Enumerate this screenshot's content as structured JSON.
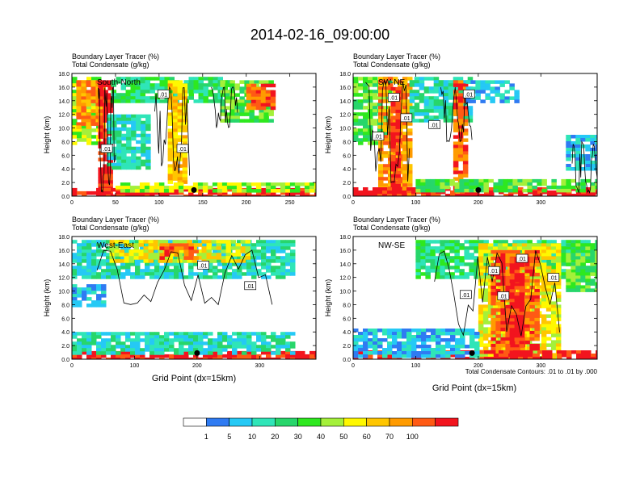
{
  "figure": {
    "title": "2014-02-16_09:00:00",
    "contour_note": "Total Condensate Contours: .01 to .01 by .000",
    "xlabel": "Grid Point (dx=15km)",
    "ylabel": "Height (km)"
  },
  "colors": {
    "levels": [
      "#ffffff",
      "#2f7bf2",
      "#25c9f5",
      "#2fe5b8",
      "#27d66b",
      "#2ee81f",
      "#a4f03a",
      "#fff800",
      "#ffc600",
      "#ff9b00",
      "#ff5a14",
      "#f2141e"
    ],
    "contour": "#000000",
    "marker": "#000000"
  },
  "chart_data": [
    {
      "type": "heatmap",
      "panel": "South-North",
      "label_top": "Boundary Layer Tracer   (%)",
      "label_bottom": "Total Condensate   (g/kg)",
      "xlim": [
        0,
        280
      ],
      "ylim": [
        0,
        18
      ],
      "xticks": [
        0,
        50,
        100,
        150,
        200,
        250
      ],
      "yticks": [
        "0.0",
        "2.0",
        "4.0",
        "6.0",
        "8.0",
        "10.0",
        "12.0",
        "14.0",
        "16.0",
        "18.0"
      ],
      "marker_x": 140,
      "boxes": [
        {
          "label": ".01",
          "x": 105,
          "y": 15.0
        },
        {
          "label": ".01",
          "x": 40,
          "y": 7.0
        },
        {
          "label": ".01",
          "x": 127,
          "y": 7.0
        }
      ],
      "seed": 11,
      "regions": [
        {
          "x": [
            0,
            30
          ],
          "y": [
            8,
            17.5
          ],
          "lvl": 6
        },
        {
          "x": [
            5,
            35
          ],
          "y": [
            10,
            17
          ],
          "lvl": 9
        },
        {
          "x": [
            30,
            42
          ],
          "y": [
            0.3,
            17
          ],
          "lvl": 11
        },
        {
          "x": [
            40,
            90
          ],
          "y": [
            4,
            12
          ],
          "lvl": 3
        },
        {
          "x": [
            45,
            180
          ],
          "y": [
            14,
            17.5
          ],
          "lvl": 4
        },
        {
          "x": [
            110,
            130
          ],
          "y": [
            2,
            17
          ],
          "lvl": 8
        },
        {
          "x": [
            170,
            230
          ],
          "y": [
            11,
            17
          ],
          "lvl": 5
        },
        {
          "x": [
            200,
            230
          ],
          "y": [
            13,
            16.5
          ],
          "lvl": 10
        },
        {
          "x": [
            0,
            280
          ],
          "y": [
            0,
            1.2
          ],
          "lvl": 11
        },
        {
          "x": [
            50,
            280
          ],
          "y": [
            0.8,
            2.0
          ],
          "lvl": 6
        }
      ],
      "contours": [
        {
          "x": [
            30,
            50
          ],
          "y": [
            0.5,
            16
          ]
        },
        {
          "x": [
            95,
            135
          ],
          "y": [
            3,
            16
          ]
        },
        {
          "x": [
            160,
            190
          ],
          "y": [
            10,
            16
          ]
        }
      ]
    },
    {
      "type": "heatmap",
      "panel": "SW-NE",
      "label_top": "Boundary Layer Tracer   (%)",
      "label_bottom": "Total Condensate   (g/kg)",
      "xlim": [
        0,
        390
      ],
      "ylim": [
        0,
        18
      ],
      "xticks": [
        0,
        100,
        200,
        300
      ],
      "yticks": [
        "0.0",
        "2.0",
        "4.0",
        "6.0",
        "8.0",
        "10.0",
        "12.0",
        "14.0",
        "16.0",
        "18.0"
      ],
      "marker_x": 200,
      "boxes": [
        {
          "label": ".01",
          "x": 65,
          "y": 14.5
        },
        {
          "label": ".01",
          "x": 85,
          "y": 11.5
        },
        {
          "label": ".01",
          "x": 40,
          "y": 8.8
        },
        {
          "label": ".01",
          "x": 130,
          "y": 10.5
        },
        {
          "label": ".01",
          "x": 185,
          "y": 15.0
        }
      ],
      "seed": 23,
      "regions": [
        {
          "x": [
            0,
            60
          ],
          "y": [
            8,
            17.5
          ],
          "lvl": 5
        },
        {
          "x": [
            40,
            90
          ],
          "y": [
            0.3,
            17.5
          ],
          "lvl": 9
        },
        {
          "x": [
            60,
            75
          ],
          "y": [
            0.3,
            16
          ],
          "lvl": 11
        },
        {
          "x": [
            90,
            190
          ],
          "y": [
            11,
            17.5
          ],
          "lvl": 3
        },
        {
          "x": [
            160,
            180
          ],
          "y": [
            0.5,
            17
          ],
          "lvl": 10
        },
        {
          "x": [
            180,
            260
          ],
          "y": [
            14,
            17
          ],
          "lvl": 2
        },
        {
          "x": [
            0,
            390
          ],
          "y": [
            0,
            1.3
          ],
          "lvl": 11
        },
        {
          "x": [
            100,
            390
          ],
          "y": [
            0.8,
            2.5
          ],
          "lvl": 5
        },
        {
          "x": [
            340,
            390
          ],
          "y": [
            4,
            9
          ],
          "lvl": 2
        }
      ],
      "contours": [
        {
          "x": [
            20,
            90
          ],
          "y": [
            2,
            17
          ]
        },
        {
          "x": [
            140,
            190
          ],
          "y": [
            8,
            16
          ]
        },
        {
          "x": [
            350,
            390
          ],
          "y": [
            0.5,
            8
          ]
        }
      ]
    },
    {
      "type": "heatmap",
      "panel": "West-East",
      "label_top": "Boundary Layer Tracer   (%)",
      "label_bottom": "Total Condensate   (g/kg)",
      "xlim": [
        0,
        390
      ],
      "ylim": [
        0,
        18
      ],
      "xticks": [
        0,
        100,
        200,
        300
      ],
      "yticks": [
        "0.0",
        "2.0",
        "4.0",
        "6.0",
        "8.0",
        "10.0",
        "12.0",
        "14.0",
        "16.0",
        "18.0"
      ],
      "marker_x": 200,
      "boxes": [
        {
          "label": ".01",
          "x": 210,
          "y": 13.8
        },
        {
          "label": ".01",
          "x": 285,
          "y": 10.8
        }
      ],
      "seed": 37,
      "regions": [
        {
          "x": [
            0,
            350
          ],
          "y": [
            12,
            17.5
          ],
          "lvl": 3
        },
        {
          "x": [
            60,
            280
          ],
          "y": [
            14.5,
            17.5
          ],
          "lvl": 7
        },
        {
          "x": [
            140,
            200
          ],
          "y": [
            15,
            17
          ],
          "lvl": 10
        },
        {
          "x": [
            0,
            50
          ],
          "y": [
            8,
            11
          ],
          "lvl": 2
        },
        {
          "x": [
            0,
            390
          ],
          "y": [
            0,
            1.2
          ],
          "lvl": 11
        },
        {
          "x": [
            0,
            350
          ],
          "y": [
            0.8,
            4
          ],
          "lvl": 3
        }
      ],
      "contours": [
        {
          "x": [
            40,
            320
          ],
          "y": [
            8,
            16
          ]
        }
      ]
    },
    {
      "type": "heatmap",
      "panel": "NW-SE",
      "label_top": "Boundary Layer Tracer   (%)",
      "label_bottom": "Total Condensate   (g/kg)",
      "xlim": [
        0,
        390
      ],
      "ylim": [
        0,
        18
      ],
      "xticks": [
        0,
        100,
        200,
        300
      ],
      "yticks": [
        "0.0",
        "2.0",
        "4.0",
        "6.0",
        "8.0",
        "10.0",
        "12.0",
        "14.0",
        "16.0",
        "18.0"
      ],
      "marker_x": 190,
      "boxes": [
        {
          "label": ".01",
          "x": 180,
          "y": 9.5
        },
        {
          "label": ".01",
          "x": 225,
          "y": 13.0
        },
        {
          "label": ".01",
          "x": 270,
          "y": 14.8
        },
        {
          "label": ".01",
          "x": 240,
          "y": 9.3
        },
        {
          "label": ".01",
          "x": 320,
          "y": 12.0
        }
      ],
      "seed": 51,
      "regions": [
        {
          "x": [
            100,
            390
          ],
          "y": [
            12,
            17.5
          ],
          "lvl": 4
        },
        {
          "x": [
            200,
            330
          ],
          "y": [
            0.3,
            17
          ],
          "lvl": 7
        },
        {
          "x": [
            220,
            290
          ],
          "y": [
            0.3,
            16
          ],
          "lvl": 10
        },
        {
          "x": [
            250,
            270
          ],
          "y": [
            0.3,
            15
          ],
          "lvl": 11
        },
        {
          "x": [
            0,
            390
          ],
          "y": [
            0,
            1.3
          ],
          "lvl": 11
        },
        {
          "x": [
            0,
            200
          ],
          "y": [
            0.5,
            4.5
          ],
          "lvl": 2
        },
        {
          "x": [
            340,
            390
          ],
          "y": [
            10,
            17
          ],
          "lvl": 5
        }
      ],
      "contours": [
        {
          "x": [
            130,
            330
          ],
          "y": [
            3,
            16
          ]
        }
      ]
    }
  ],
  "colorbar": {
    "labels": [
      "1",
      "5",
      "10",
      "20",
      "30",
      "40",
      "50",
      "60",
      "70",
      "100"
    ]
  }
}
